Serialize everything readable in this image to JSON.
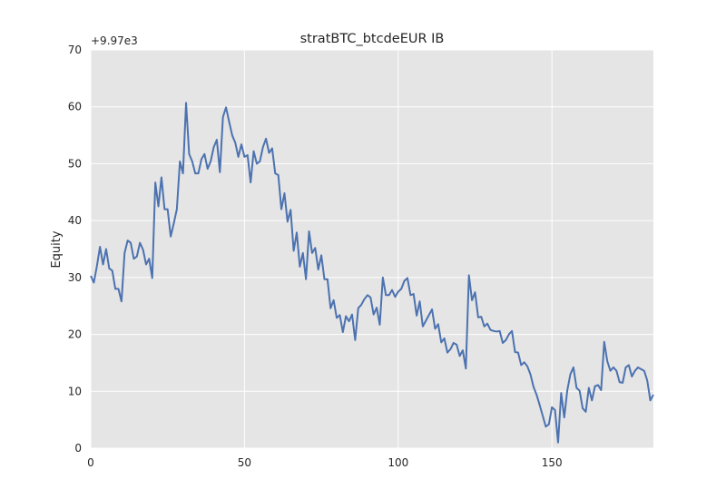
{
  "chart_data": {
    "type": "line",
    "title": "stratBTC_btcdeEUR IB",
    "xlabel": "",
    "ylabel": "Equity",
    "y_offset_label": "+9.97e3",
    "xlim": [
      0,
      183
    ],
    "ylim": [
      0,
      70
    ],
    "x_ticks": [
      "0",
      "50",
      "100",
      "150"
    ],
    "y_ticks": [
      "0",
      "10",
      "20",
      "30",
      "40",
      "50",
      "60",
      "70"
    ],
    "grid": true,
    "colors": {
      "line": "#4c72b0",
      "plot_bg": "#e5e5e5",
      "grid": "#ffffff"
    },
    "series": [
      {
        "values": [
          30.3,
          29.1,
          32.0,
          35.4,
          32.3,
          35.0,
          31.6,
          31.2,
          28.0,
          28.0,
          25.8,
          34.3,
          36.5,
          36.1,
          33.3,
          33.7,
          36.1,
          34.9,
          32.3,
          33.3,
          29.9,
          46.7,
          42.5,
          47.6,
          42.0,
          42.0,
          37.2,
          39.5,
          42.0,
          50.4,
          48.3,
          60.7,
          51.7,
          50.4,
          48.3,
          48.3,
          50.8,
          51.7,
          49.1,
          50.4,
          52.9,
          54.2,
          48.5,
          58.2,
          59.9,
          57.4,
          55.0,
          53.7,
          51.2,
          53.4,
          51.2,
          51.5,
          46.7,
          52.2,
          50.0,
          50.4,
          52.9,
          54.4,
          51.9,
          52.7,
          48.3,
          48.0,
          42.0,
          44.8,
          39.8,
          41.9,
          34.7,
          37.9,
          31.9,
          34.3,
          29.7,
          38.1,
          34.3,
          35.2,
          31.4,
          33.9,
          29.7,
          29.7,
          24.6,
          26.0,
          22.9,
          23.4,
          20.4,
          23.2,
          22.3,
          23.5,
          19.0,
          24.6,
          25.2,
          26.2,
          26.9,
          26.5,
          23.5,
          24.7,
          21.7,
          30.0,
          26.9,
          26.9,
          27.8,
          26.6,
          27.5,
          28.0,
          29.4,
          29.9,
          26.9,
          27.1,
          23.3,
          25.8,
          21.4,
          22.4,
          23.4,
          24.4,
          21.0,
          21.8,
          18.6,
          19.3,
          16.8,
          17.4,
          18.5,
          18.2,
          16.2,
          17.2,
          14.0,
          30.4,
          26.0,
          27.4,
          23.0,
          23.1,
          21.4,
          21.9,
          20.8,
          20.6,
          20.5,
          20.6,
          18.5,
          19.0,
          20.0,
          20.6,
          16.9,
          16.8,
          14.6,
          15.1,
          14.4,
          13.0,
          10.8,
          9.4,
          7.6,
          5.7,
          3.8,
          4.2,
          7.2,
          6.7,
          1.0,
          9.7,
          5.4,
          10.2,
          13.0,
          14.2,
          10.6,
          10.1,
          7.0,
          6.4,
          10.6,
          8.4,
          10.9,
          11.1,
          10.2,
          18.7,
          15.3,
          13.6,
          14.2,
          13.6,
          11.6,
          11.5,
          14.2,
          14.6,
          12.6,
          13.6,
          14.2,
          13.9,
          13.6,
          11.9,
          8.4,
          9.4
        ]
      }
    ]
  }
}
